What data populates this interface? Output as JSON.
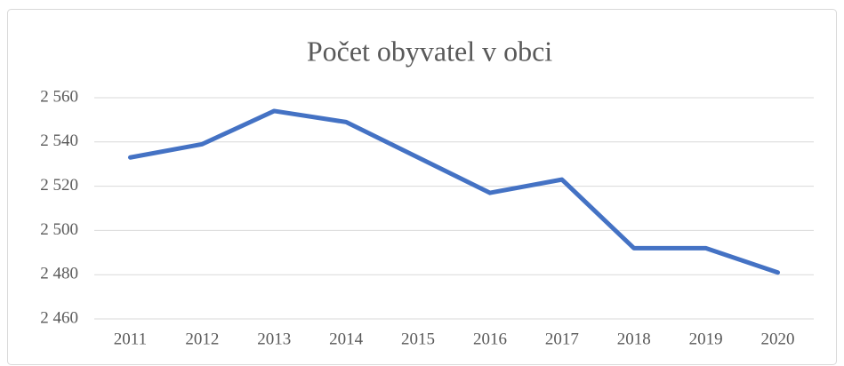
{
  "chart_data": {
    "type": "line",
    "title": "Počet obyvatel v obci",
    "categories": [
      "2011",
      "2012",
      "2013",
      "2014",
      "2015",
      "2016",
      "2017",
      "2018",
      "2019",
      "2020"
    ],
    "series": [
      {
        "color": "#4472c4",
        "values": [
          2533,
          2539,
          2554,
          2549,
          2533,
          2517,
          2523,
          2492,
          2492,
          2481
        ]
      }
    ],
    "ylim": [
      2460,
      2560
    ],
    "yticks": [
      {
        "value": 2460,
        "label": "2 460"
      },
      {
        "value": 2480,
        "label": "2 480"
      },
      {
        "value": 2500,
        "label": "2 500"
      },
      {
        "value": 2520,
        "label": "2 520"
      },
      {
        "value": 2540,
        "label": "2 540"
      },
      {
        "value": 2560,
        "label": "2 560"
      }
    ],
    "grid": true
  }
}
